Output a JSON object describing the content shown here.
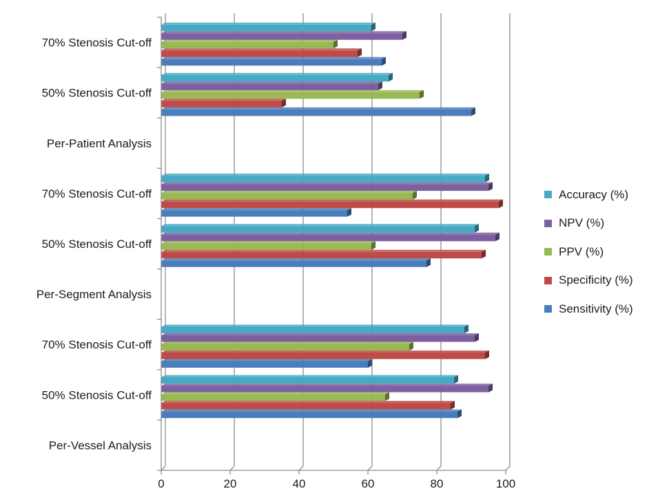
{
  "chart_data": {
    "type": "bar",
    "orientation": "horizontal",
    "categories": [
      "Per-Vessel Analysis",
      "50% Stenosis Cut-off",
      "70% Stenosis Cut-off",
      "Per-Segment Analysis",
      "50% Stenosis Cut-off",
      "70% Stenosis Cut-off",
      "Per-Patient Analysis",
      "50% Stenosis Cut-off",
      "70% Stenosis Cut-off"
    ],
    "series": [
      {
        "name": "Sensitivity (%)",
        "color": "#4a7ebb",
        "values": [
          null,
          86,
          60,
          null,
          77,
          54,
          null,
          90,
          64
        ]
      },
      {
        "name": "Specificity (%)",
        "color": "#be4b48",
        "values": [
          null,
          84,
          94,
          null,
          93,
          98,
          null,
          35,
          57
        ]
      },
      {
        "name": "PPV (%)",
        "color": "#98b954",
        "values": [
          null,
          65,
          72,
          null,
          61,
          73,
          null,
          75,
          50
        ]
      },
      {
        "name": "NPV (%)",
        "color": "#7d60a0",
        "values": [
          null,
          95,
          91,
          null,
          97,
          95,
          null,
          63,
          70
        ]
      },
      {
        "name": "Accuracy (%)",
        "color": "#46aac5",
        "values": [
          null,
          85,
          88,
          null,
          91,
          94,
          null,
          66,
          61
        ]
      }
    ],
    "xlim": [
      0,
      100
    ],
    "xticks": [
      "0",
      "20",
      "40",
      "60",
      "80",
      "100"
    ],
    "grid": "vertical major gridlines",
    "legend_position": "right",
    "legend_order": [
      "Accuracy (%)",
      "NPV (%)",
      "PPV (%)",
      "Specificity (%)",
      "Sensitivity (%)"
    ]
  }
}
